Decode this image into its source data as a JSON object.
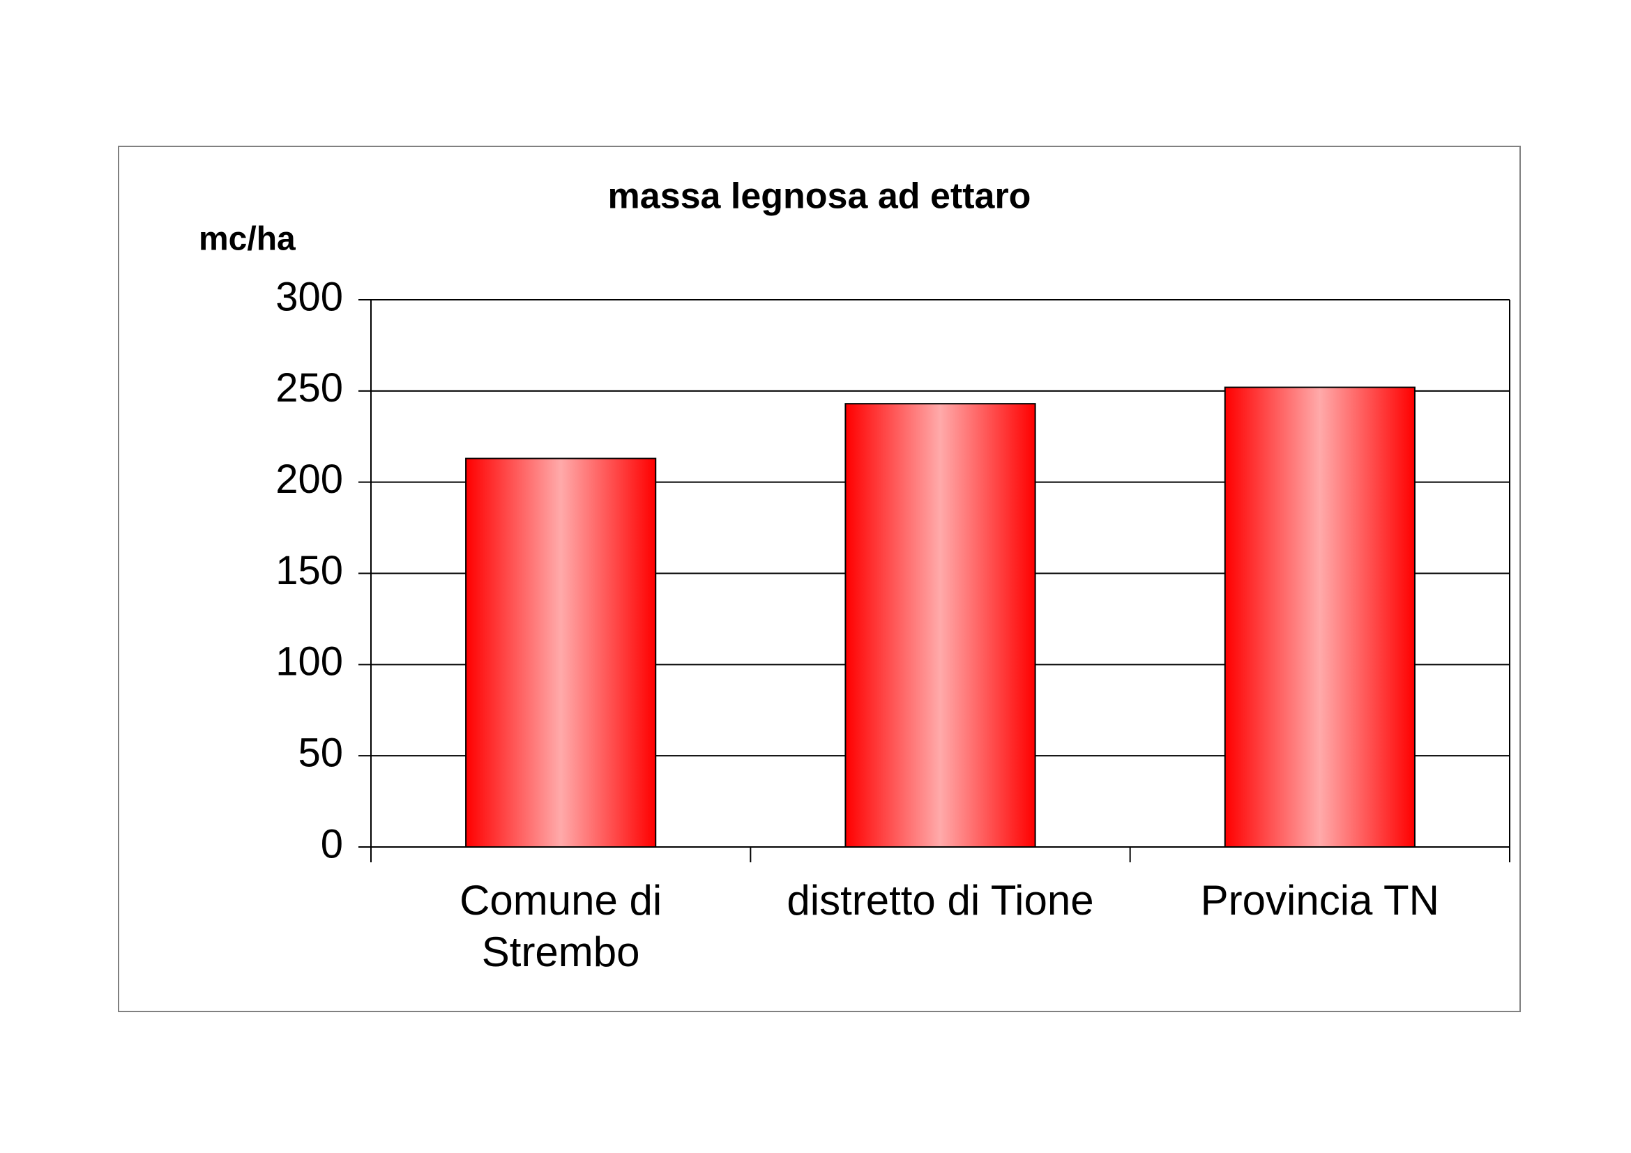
{
  "chart_data": {
    "type": "bar",
    "title": "massa legnosa ad ettaro",
    "y_label": "mc/ha",
    "categories": [
      "Comune di Strembo",
      "distretto di Tione",
      "Provincia TN"
    ],
    "values": [
      213,
      243,
      252
    ],
    "color": "#ff0000",
    "ylim": [
      0,
      300
    ],
    "yticks": [
      0,
      50,
      100,
      150,
      200,
      250,
      300
    ],
    "grid": true
  }
}
